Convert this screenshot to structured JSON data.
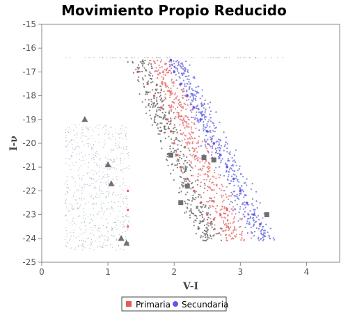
{
  "chart_data": {
    "type": "scatter",
    "title": "Movimiento Propio Reducido",
    "xlabel": "V-I",
    "ylabel": "I-ν",
    "xlim": [
      0,
      4.5
    ],
    "ylim": [
      -25,
      -15
    ],
    "y_inverted": true,
    "x_ticks": [
      "0",
      "1",
      "2",
      "3",
      "4"
    ],
    "y_ticks": [
      "-15",
      "-16",
      "-17",
      "-18",
      "-19",
      "-20",
      "-21",
      "-22",
      "-23",
      "-24",
      "-25"
    ],
    "grid": false,
    "legend_placement": "bottom-center",
    "series": [
      {
        "name": "Primaria",
        "color": "#e85a5a",
        "marker": "square",
        "x": [
          1.45,
          1.6,
          1.7,
          1.8,
          1.9,
          1.95,
          2.0,
          2.05,
          2.1,
          2.2,
          2.3,
          2.4,
          2.5,
          2.6,
          2.7,
          2.8,
          1.3,
          1.3,
          1.3,
          1.3
        ],
        "y": [
          -17.0,
          -17.5,
          -18.0,
          -18.5,
          -19.0,
          -19.5,
          -20.0,
          -20.5,
          -21.0,
          -21.5,
          -22.0,
          -22.5,
          -23.0,
          -23.2,
          -23.0,
          -22.8,
          -22.0,
          -22.8,
          -23.5,
          -24.2
        ]
      },
      {
        "name": "Secundaria",
        "color": "#5a5ae8",
        "marker": "circle",
        "x": [
          1.95,
          2.0,
          2.1,
          2.2,
          2.3,
          2.4,
          2.5,
          2.6,
          2.7,
          2.8,
          2.9,
          3.0,
          3.1,
          3.2,
          3.3
        ],
        "y": [
          -16.5,
          -17.0,
          -17.5,
          -18.0,
          -18.5,
          -19.0,
          -19.5,
          -20.0,
          -20.5,
          -21.0,
          -21.5,
          -22.0,
          -22.5,
          -23.0,
          -23.4
        ]
      },
      {
        "color": "#707070",
        "marker": "square",
        "x": [
          1.95,
          2.2,
          2.1,
          2.45,
          2.6,
          3.4
        ],
        "y": [
          -20.5,
          -21.8,
          -22.5,
          -20.6,
          -20.7,
          -23.0
        ]
      },
      {
        "color": "#707070",
        "marker": "triangle",
        "x": [
          0.65,
          1.0,
          1.05,
          1.2,
          1.28
        ],
        "y": [
          -19.0,
          -20.9,
          -21.7,
          -24.0,
          -24.2
        ]
      }
    ]
  }
}
